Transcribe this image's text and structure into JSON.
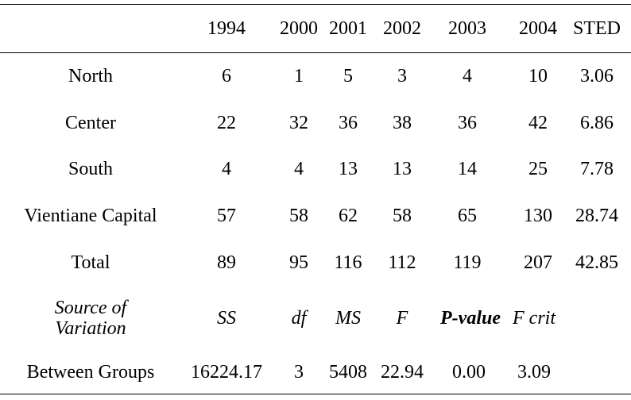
{
  "header": [
    "",
    "1994",
    "2000",
    "2001",
    "2002",
    "2003",
    "2004",
    "STED"
  ],
  "rows": [
    {
      "label": "North",
      "values": [
        "6",
        "1",
        "5",
        "3",
        "4",
        "10",
        "3.06"
      ]
    },
    {
      "label": "Center",
      "values": [
        "22",
        "32",
        "36",
        "38",
        "36",
        "42",
        "6.86"
      ]
    },
    {
      "label": "South",
      "values": [
        "4",
        "4",
        "13",
        "13",
        "14",
        "25",
        "7.78"
      ]
    },
    {
      "label": "Vientiane Capital",
      "values": [
        "57",
        "58",
        "62",
        "58",
        "65",
        "130",
        "28.74"
      ]
    },
    {
      "label": "Total",
      "values": [
        "89",
        "95",
        "116",
        "112",
        "119",
        "207",
        "42.85"
      ]
    }
  ],
  "anova_header": {
    "label_line1": "Source of",
    "label_line2": "Variation",
    "values": [
      "SS",
      "df",
      "MS",
      "F",
      "P-value",
      "F crit",
      ""
    ]
  },
  "anova_row": {
    "label": "Between Groups",
    "values": [
      "16224.17",
      "3",
      "5408",
      "22.94",
      "0.00",
      "3.09",
      ""
    ]
  }
}
